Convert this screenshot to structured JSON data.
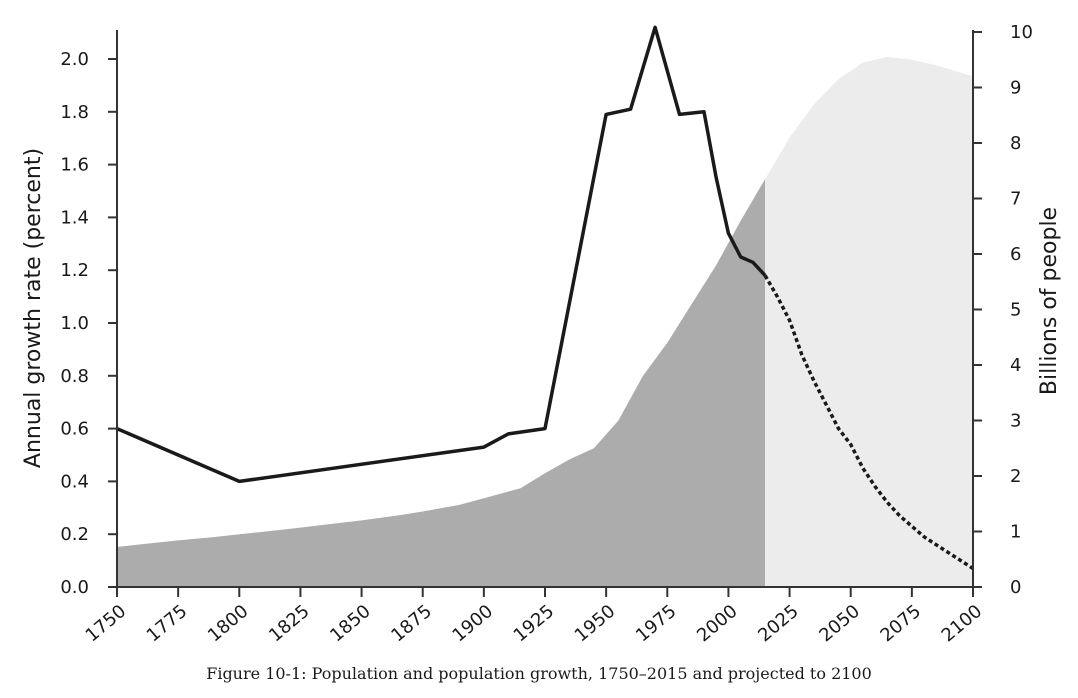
{
  "chart_data": {
    "type": "line",
    "caption": "Figure 10-1: Population and population growth, 1750–2015 and projected to 2100",
    "x_ticks": [
      "1750",
      "1775",
      "1800",
      "1825",
      "1850",
      "1875",
      "1900",
      "1925",
      "1950",
      "1975",
      "2000",
      "2025",
      "2050",
      "2075",
      "2100"
    ],
    "xlim": [
      1750,
      2100
    ],
    "left_axis": {
      "label": "Annual growth rate (percent)",
      "ylim": [
        0,
        2.1
      ],
      "ticks": [
        "0.0",
        "0.2",
        "0.4",
        "0.6",
        "0.8",
        "1.0",
        "1.2",
        "1.4",
        "1.6",
        "1.8",
        "2.0"
      ]
    },
    "right_axis": {
      "label": "Billions of people",
      "ylim": [
        0,
        10
      ],
      "ticks": [
        "0",
        "1",
        "2",
        "3",
        "4",
        "5",
        "6",
        "7",
        "8",
        "9",
        "10"
      ]
    },
    "series": [
      {
        "axis": "right",
        "type": "area",
        "segment": "historical",
        "color": "#acacac",
        "points": [
          [
            1750,
            0.72
          ],
          [
            1760,
            0.77
          ],
          [
            1775,
            0.84
          ],
          [
            1790,
            0.9
          ],
          [
            1800,
            0.95
          ],
          [
            1815,
            1.02
          ],
          [
            1825,
            1.07
          ],
          [
            1840,
            1.15
          ],
          [
            1850,
            1.2
          ],
          [
            1865,
            1.29
          ],
          [
            1875,
            1.36
          ],
          [
            1890,
            1.48
          ],
          [
            1900,
            1.6
          ],
          [
            1915,
            1.78
          ],
          [
            1925,
            2.05
          ],
          [
            1935,
            2.3
          ],
          [
            1945,
            2.5
          ],
          [
            1955,
            3.0
          ],
          [
            1965,
            3.8
          ],
          [
            1975,
            4.4
          ],
          [
            1985,
            5.1
          ],
          [
            1995,
            5.8
          ],
          [
            2005,
            6.6
          ],
          [
            2015,
            7.35
          ]
        ]
      },
      {
        "axis": "right",
        "type": "area",
        "segment": "projected",
        "color": "#ececec",
        "points": [
          [
            2015,
            7.35
          ],
          [
            2025,
            8.1
          ],
          [
            2035,
            8.7
          ],
          [
            2045,
            9.15
          ],
          [
            2055,
            9.45
          ],
          [
            2065,
            9.55
          ],
          [
            2075,
            9.5
          ],
          [
            2085,
            9.4
          ],
          [
            2100,
            9.2
          ]
        ]
      },
      {
        "axis": "left",
        "type": "line",
        "segment": "historical",
        "color": "#1a1a1a",
        "points": [
          [
            1750,
            0.6
          ],
          [
            1800,
            0.4
          ],
          [
            1900,
            0.53
          ],
          [
            1910,
            0.58
          ],
          [
            1925,
            0.6
          ],
          [
            1950,
            1.79
          ],
          [
            1960,
            1.81
          ],
          [
            1970,
            2.12
          ],
          [
            1980,
            1.79
          ],
          [
            1990,
            1.8
          ],
          [
            1995,
            1.55
          ],
          [
            2000,
            1.34
          ],
          [
            2005,
            1.25
          ],
          [
            2010,
            1.23
          ],
          [
            2015,
            1.18
          ]
        ]
      },
      {
        "axis": "left",
        "type": "line",
        "segment": "projected",
        "style": "dotted",
        "color": "#1a1a1a",
        "points": [
          [
            2015,
            1.18
          ],
          [
            2020,
            1.1
          ],
          [
            2025,
            1.01
          ],
          [
            2030,
            0.88
          ],
          [
            2035,
            0.78
          ],
          [
            2040,
            0.69
          ],
          [
            2045,
            0.6
          ],
          [
            2050,
            0.54
          ],
          [
            2055,
            0.45
          ],
          [
            2060,
            0.38
          ],
          [
            2065,
            0.32
          ],
          [
            2070,
            0.27
          ],
          [
            2075,
            0.23
          ],
          [
            2080,
            0.19
          ],
          [
            2085,
            0.16
          ],
          [
            2090,
            0.13
          ],
          [
            2095,
            0.1
          ],
          [
            2100,
            0.07
          ]
        ]
      }
    ]
  }
}
